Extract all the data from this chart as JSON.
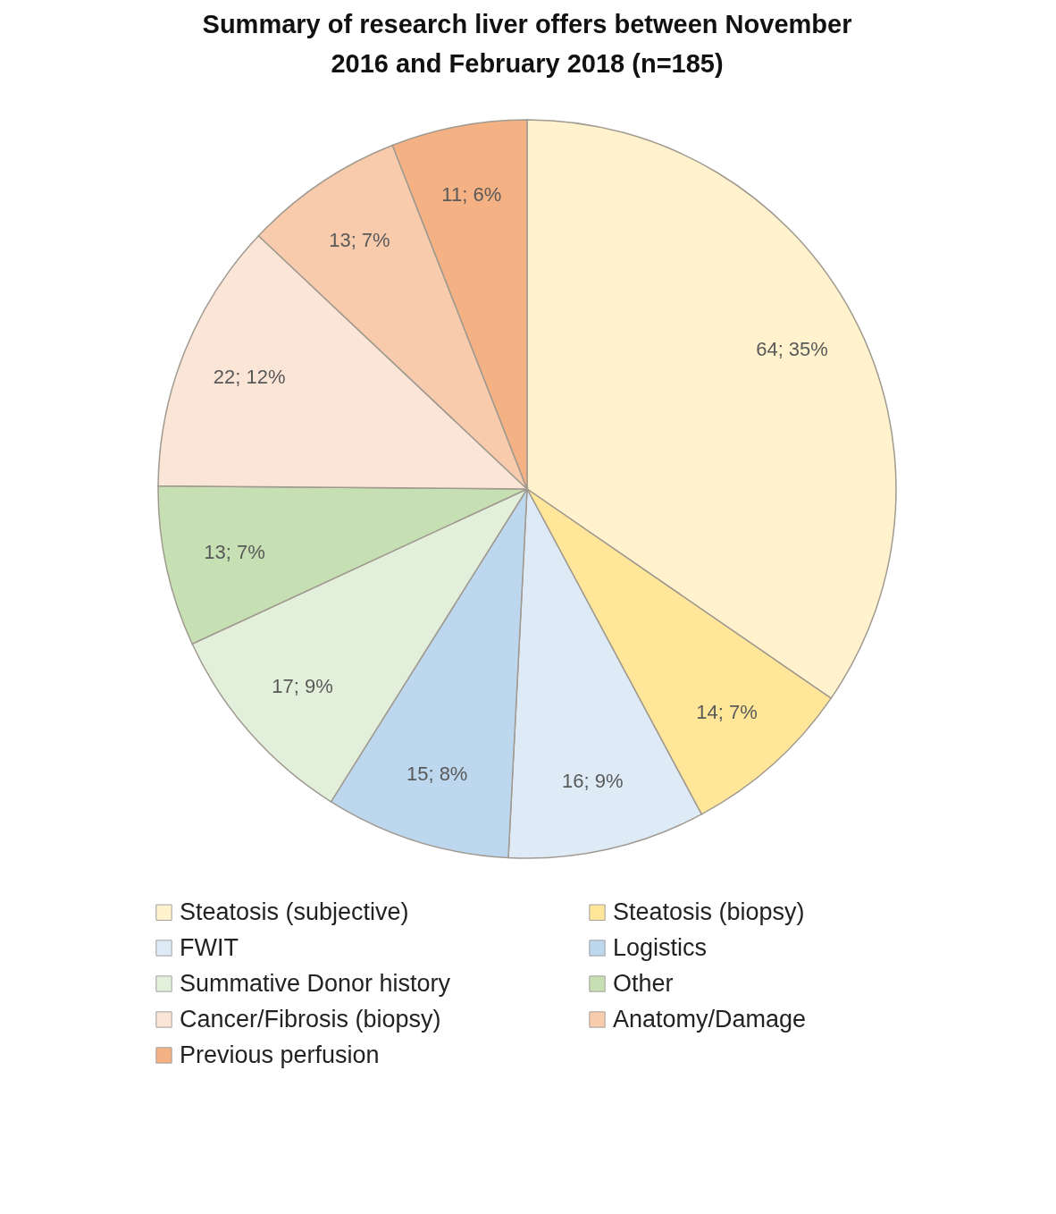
{
  "chart_data": {
    "type": "pie",
    "title": "Summary of research liver offers between November 2016 and February 2018 (n=185)",
    "categories": [
      "Steatosis (subjective)",
      "Steatosis (biopsy)",
      "FWIT",
      "Logistics",
      "Summative Donor history",
      "Other",
      "Cancer/Fibrosis (biopsy)",
      "Anatomy/Damage",
      "Previous perfusion"
    ],
    "values": [
      64,
      14,
      16,
      15,
      17,
      13,
      22,
      13,
      11
    ],
    "value_labels": [
      "64; 35%",
      "14; 7%",
      "16; 9%",
      "15; 8%",
      "17; 9%",
      "13; 7%",
      "22; 12%",
      "13; 7%",
      "11; 6%"
    ],
    "colors": [
      "#fff2cc",
      "#ffe699",
      "#deebf7",
      "#bdd7ee",
      "#e2efda",
      "#c6e0b4",
      "#fbe5d6",
      "#f8cbad",
      "#f4b183"
    ],
    "legend": "bottom"
  }
}
